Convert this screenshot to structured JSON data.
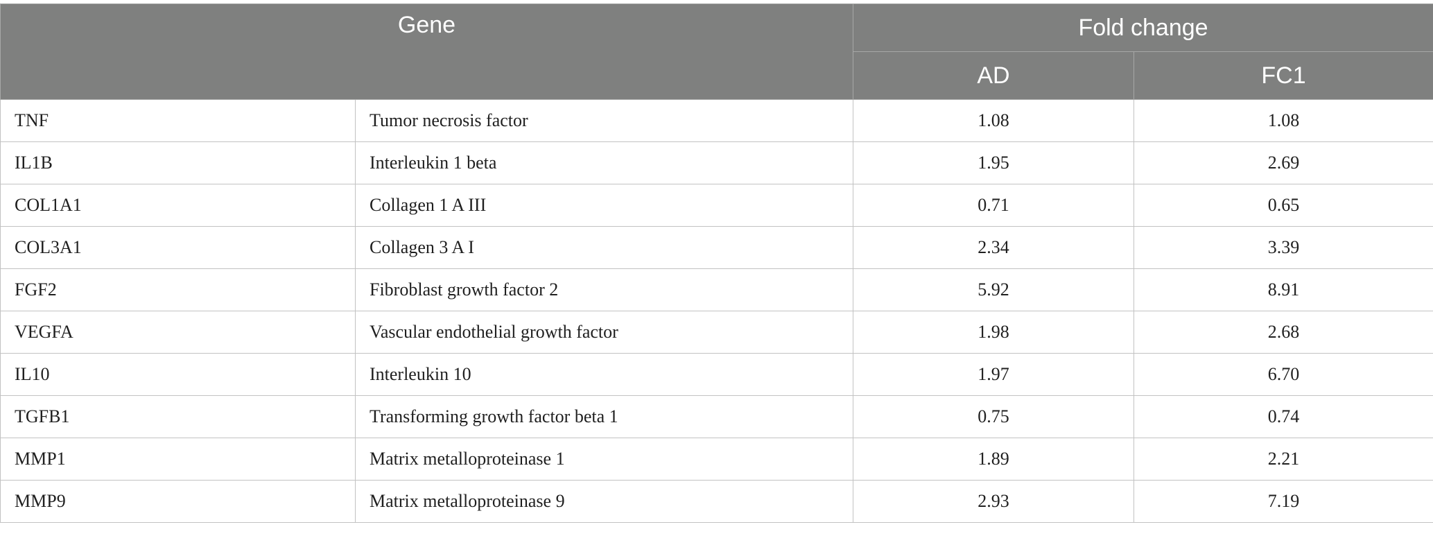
{
  "table": {
    "header": {
      "gene": "Gene",
      "fold_change": "Fold change",
      "sub": [
        "AD",
        "FC1"
      ]
    },
    "rows": [
      {
        "symbol": "TNF",
        "name": "Tumor necrosis factor",
        "ad": "1.08",
        "fc1": "1.08"
      },
      {
        "symbol": "IL1B",
        "name": "Interleukin 1 beta",
        "ad": "1.95",
        "fc1": "2.69"
      },
      {
        "symbol": "COL1A1",
        "name": "Collagen 1 A III",
        "ad": "0.71",
        "fc1": "0.65"
      },
      {
        "symbol": "COL3A1",
        "name": "Collagen 3 A I",
        "ad": "2.34",
        "fc1": "3.39"
      },
      {
        "symbol": "FGF2",
        "name": "Fibroblast growth factor 2",
        "ad": "5.92",
        "fc1": "8.91"
      },
      {
        "symbol": "VEGFA",
        "name": "Vascular endothelial growth factor",
        "ad": "1.98",
        "fc1": "2.68"
      },
      {
        "symbol": "IL10",
        "name": "Interleukin 10",
        "ad": "1.97",
        "fc1": "6.70"
      },
      {
        "symbol": "TGFB1",
        "name": "Transforming growth factor beta 1",
        "ad": "0.75",
        "fc1": "0.74"
      },
      {
        "symbol": "MMP1",
        "name": "Matrix metalloproteinase 1",
        "ad": "1.89",
        "fc1": "2.21"
      },
      {
        "symbol": "MMP9",
        "name": "Matrix metalloproteinase 9",
        "ad": "2.93",
        "fc1": "7.19"
      }
    ]
  },
  "colors": {
    "header_bg": "#7f807f",
    "header_text": "#ffffff",
    "grid": "#c2c2c2"
  }
}
